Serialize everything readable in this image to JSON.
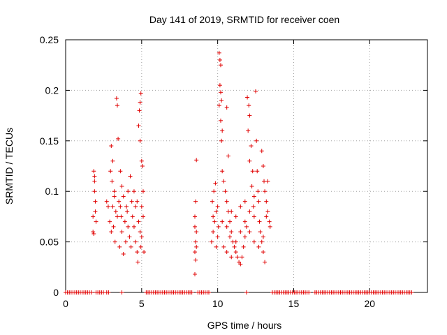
{
  "chart_data": {
    "type": "scatter",
    "title": "Day 141 of 2019, SRMTID for receiver coen",
    "xlabel": "GPS time / hours",
    "ylabel": "SRMTID / TECUs",
    "xlim": [
      0,
      23.8
    ],
    "ylim": [
      0,
      0.25
    ],
    "x_ticks": [
      0,
      5,
      10,
      15,
      20
    ],
    "x_tick_labels": [
      "0",
      "5",
      "10",
      "15",
      "20"
    ],
    "y_ticks": [
      0,
      0.05,
      0.1,
      0.15,
      0.2,
      0.25
    ],
    "y_tick_labels": [
      "0",
      "0.05",
      "0.1",
      "0.15",
      "0.2",
      "0.25"
    ],
    "grid": true,
    "marker": "plus",
    "color": "#e00000",
    "series": [
      {
        "name": "SRMTID",
        "points": [
          [
            1.8,
            0.06
          ],
          [
            1.85,
            0.12
          ],
          [
            1.9,
            0.11
          ],
          [
            1.95,
            0.08
          ],
          [
            1.8,
            0.075
          ],
          [
            1.9,
            0.1
          ],
          [
            1.85,
            0.058
          ],
          [
            2.0,
            0.07
          ],
          [
            1.9,
            0.115
          ],
          [
            1.95,
            0.09
          ],
          [
            2.7,
            0.09
          ],
          [
            2.8,
            0.085
          ],
          [
            2.9,
            0.07
          ],
          [
            3.0,
            0.145
          ],
          [
            3.1,
            0.13
          ],
          [
            3.05,
            0.11
          ],
          [
            3.2,
            0.1
          ],
          [
            2.95,
            0.12
          ],
          [
            3.1,
            0.085
          ],
          [
            3.15,
            0.065
          ],
          [
            3.3,
            0.08
          ],
          [
            3.4,
            0.075
          ],
          [
            3.5,
            0.09
          ],
          [
            3.35,
            0.192
          ],
          [
            3.4,
            0.185
          ],
          [
            3.45,
            0.152
          ],
          [
            3.6,
            0.12
          ],
          [
            3.7,
            0.105
          ],
          [
            3.8,
            0.095
          ],
          [
            3.65,
            0.075
          ],
          [
            3.7,
            0.06
          ],
          [
            3.9,
            0.07
          ],
          [
            4.0,
            0.085
          ],
          [
            4.1,
            0.065
          ],
          [
            4.2,
            0.055
          ],
          [
            4.3,
            0.045
          ],
          [
            4.1,
            0.1
          ],
          [
            4.25,
            0.115
          ],
          [
            4.4,
            0.075
          ],
          [
            4.5,
            0.065
          ],
          [
            4.6,
            0.05
          ],
          [
            4.7,
            0.04
          ],
          [
            4.75,
            0.03
          ],
          [
            4.6,
            0.085
          ],
          [
            4.7,
            0.09
          ],
          [
            4.8,
            0.07
          ],
          [
            4.9,
            0.06
          ],
          [
            5.0,
            0.055
          ],
          [
            4.95,
            0.197
          ],
          [
            4.9,
            0.188
          ],
          [
            4.85,
            0.18
          ],
          [
            4.8,
            0.165
          ],
          [
            4.9,
            0.15
          ],
          [
            5.0,
            0.13
          ],
          [
            5.05,
            0.125
          ],
          [
            5.1,
            0.1
          ],
          [
            5.0,
            0.085
          ],
          [
            5.1,
            0.075
          ],
          [
            4.95,
            0.045
          ],
          [
            5.15,
            0.04
          ],
          [
            3.0,
            0.06
          ],
          [
            3.25,
            0.05
          ],
          [
            3.55,
            0.045
          ],
          [
            3.8,
            0.038
          ],
          [
            3.95,
            0.05
          ],
          [
            4.35,
            0.09
          ],
          [
            4.5,
            0.1
          ],
          [
            3.2,
            0.095
          ],
          [
            3.6,
            0.085
          ],
          [
            4.05,
            0.08
          ],
          [
            8.5,
            0.018
          ],
          [
            8.55,
            0.05
          ],
          [
            8.6,
            0.06
          ],
          [
            8.5,
            0.075
          ],
          [
            8.55,
            0.09
          ],
          [
            8.6,
            0.131
          ],
          [
            8.5,
            0.04
          ],
          [
            8.55,
            0.032
          ],
          [
            8.6,
            0.045
          ],
          [
            8.5,
            0.065
          ],
          [
            9.6,
            0.05
          ],
          [
            9.7,
            0.06
          ],
          [
            9.8,
            0.07
          ],
          [
            9.9,
            0.08
          ],
          [
            9.65,
            0.09
          ],
          [
            9.75,
            0.1
          ],
          [
            9.85,
            0.108
          ],
          [
            9.9,
            0.045
          ],
          [
            10.0,
            0.055
          ],
          [
            10.05,
            0.065
          ],
          [
            10.1,
            0.237
          ],
          [
            10.15,
            0.23
          ],
          [
            10.2,
            0.225
          ],
          [
            10.15,
            0.205
          ],
          [
            10.2,
            0.198
          ],
          [
            10.25,
            0.19
          ],
          [
            10.1,
            0.185
          ],
          [
            10.2,
            0.17
          ],
          [
            10.3,
            0.16
          ],
          [
            10.25,
            0.15
          ],
          [
            10.3,
            0.12
          ],
          [
            10.4,
            0.11
          ],
          [
            10.5,
            0.1
          ],
          [
            10.6,
            0.09
          ],
          [
            10.7,
            0.08
          ],
          [
            10.8,
            0.07
          ],
          [
            10.9,
            0.06
          ],
          [
            11.0,
            0.05
          ],
          [
            11.1,
            0.045
          ],
          [
            11.2,
            0.04
          ],
          [
            10.6,
            0.183
          ],
          [
            10.7,
            0.135
          ],
          [
            10.8,
            0.055
          ],
          [
            11.3,
            0.035
          ],
          [
            11.4,
            0.03
          ],
          [
            11.5,
            0.028
          ],
          [
            11.6,
            0.035
          ],
          [
            11.7,
            0.045
          ],
          [
            11.8,
            0.055
          ],
          [
            11.9,
            0.065
          ],
          [
            11.95,
            0.193
          ],
          [
            12.05,
            0.185
          ],
          [
            12.1,
            0.175
          ],
          [
            12.0,
            0.16
          ],
          [
            12.2,
            0.145
          ],
          [
            12.1,
            0.13
          ],
          [
            12.3,
            0.12
          ],
          [
            12.25,
            0.105
          ],
          [
            12.4,
            0.095
          ],
          [
            12.35,
            0.085
          ],
          [
            12.5,
            0.199
          ],
          [
            12.55,
            0.15
          ],
          [
            12.6,
            0.12
          ],
          [
            12.65,
            0.1
          ],
          [
            12.7,
            0.09
          ],
          [
            12.75,
            0.07
          ],
          [
            12.8,
            0.06
          ],
          [
            12.9,
            0.05
          ],
          [
            13.0,
            0.04
          ],
          [
            13.1,
            0.03
          ],
          [
            12.9,
            0.14
          ],
          [
            13.0,
            0.125
          ],
          [
            13.05,
            0.11
          ],
          [
            13.1,
            0.1
          ],
          [
            13.2,
            0.09
          ],
          [
            13.3,
            0.08
          ],
          [
            13.4,
            0.07
          ],
          [
            13.45,
            0.065
          ],
          [
            13.3,
            0.11
          ],
          [
            13.2,
            0.075
          ],
          [
            10.4,
            0.045
          ],
          [
            10.6,
            0.04
          ],
          [
            10.9,
            0.035
          ],
          [
            11.2,
            0.05
          ],
          [
            11.5,
            0.06
          ],
          [
            11.8,
            0.07
          ],
          [
            12.1,
            0.06
          ],
          [
            12.4,
            0.05
          ],
          [
            12.7,
            0.045
          ],
          [
            13.0,
            0.055
          ],
          [
            9.7,
            0.075
          ],
          [
            10.0,
            0.085
          ],
          [
            10.3,
            0.07
          ],
          [
            10.6,
            0.065
          ],
          [
            10.9,
            0.08
          ],
          [
            11.2,
            0.075
          ],
          [
            11.5,
            0.085
          ],
          [
            11.8,
            0.09
          ],
          [
            12.1,
            0.08
          ],
          [
            12.4,
            0.075
          ]
        ]
      }
    ],
    "zero_bands": [
      [
        0.0,
        1.8
      ],
      [
        2.0,
        2.6
      ],
      [
        2.7,
        2.9
      ],
      [
        3.7,
        3.8
      ],
      [
        5.3,
        8.4
      ],
      [
        8.7,
        9.5
      ],
      [
        11.9,
        12.0
      ],
      [
        13.6,
        16.0
      ],
      [
        16.4,
        22.8
      ]
    ]
  }
}
